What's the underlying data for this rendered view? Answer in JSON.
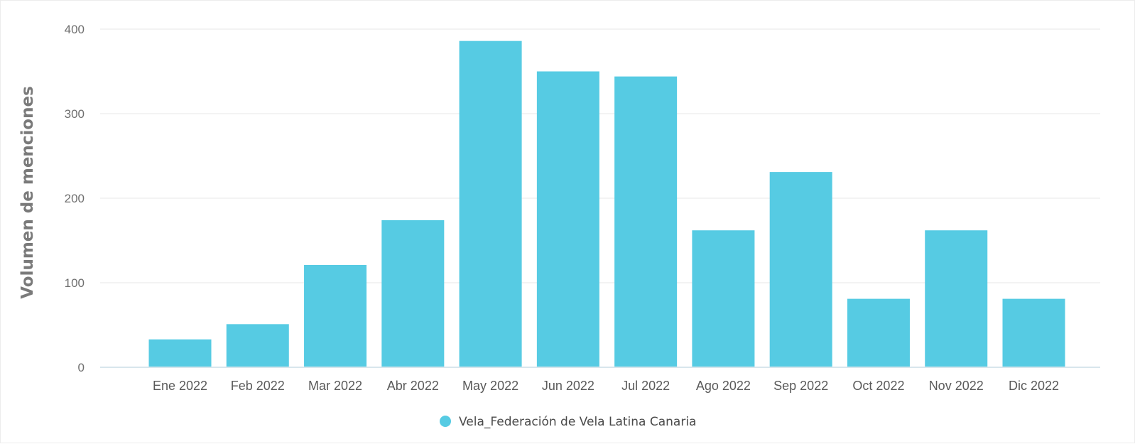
{
  "chart_data": {
    "type": "bar",
    "ylabel": "Volumen de menciones",
    "xlabel": "",
    "ylim": [
      0,
      400
    ],
    "yticks": [
      0,
      100,
      200,
      300,
      400
    ],
    "grid": true,
    "legend_position": "bottom-center",
    "categories": [
      "Ene 2022",
      "Feb 2022",
      "Mar 2022",
      "Abr 2022",
      "May 2022",
      "Jun 2022",
      "Jul 2022",
      "Ago 2022",
      "Sep 2022",
      "Oct 2022",
      "Nov 2022",
      "Dic 2022"
    ],
    "series": [
      {
        "name": "Vela_Federación de Vela Latina Canaria",
        "color": "#56cbe3",
        "values": [
          33,
          51,
          121,
          174,
          386,
          350,
          344,
          162,
          231,
          81,
          162,
          81
        ]
      }
    ]
  }
}
